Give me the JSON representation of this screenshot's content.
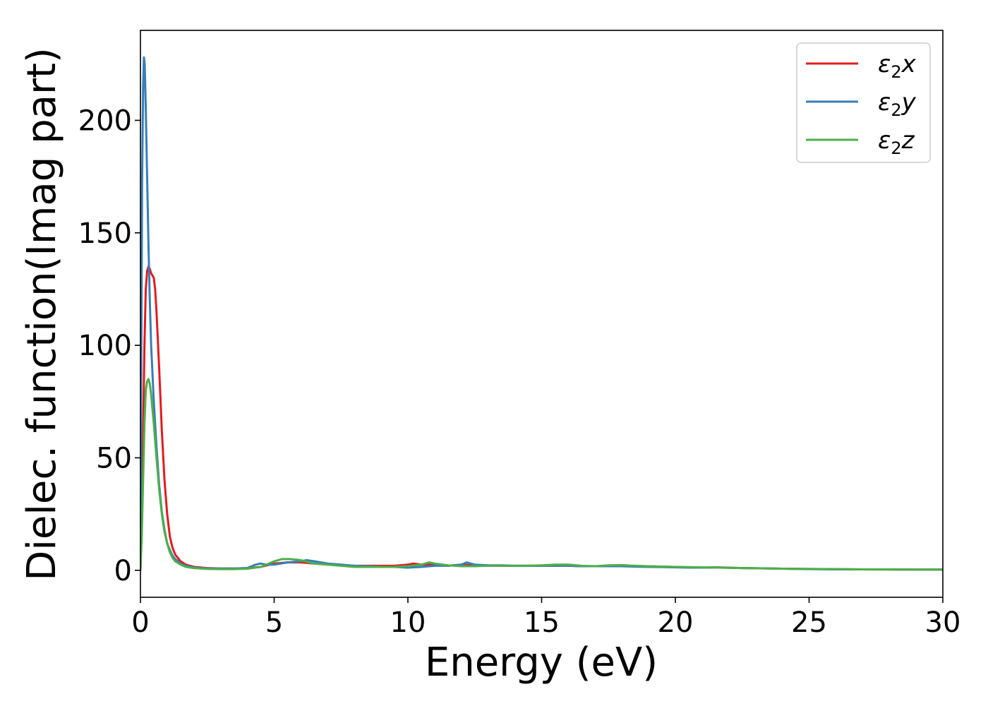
{
  "chart_data": {
    "type": "line",
    "title": "",
    "xlabel": "Energy (eV)",
    "ylabel": "Dielec. function(Imag part)",
    "xlim": [
      0,
      30
    ],
    "ylim": [
      -12,
      240
    ],
    "xticks": [
      0,
      5,
      10,
      15,
      20,
      25,
      30
    ],
    "xtick_labels": [
      "0",
      "5",
      "10",
      "15",
      "20",
      "25",
      "30"
    ],
    "yticks": [
      0,
      50,
      100,
      150,
      200
    ],
    "ytick_labels": [
      "0",
      "50",
      "100",
      "150",
      "200"
    ],
    "grid": false,
    "legend_position": "top-right",
    "series": [
      {
        "name": "ε2x",
        "legend_base": "ε",
        "legend_sub": "2",
        "legend_suffix": "x",
        "color": "#e41a1c",
        "x": [
          0,
          0.05,
          0.1,
          0.15,
          0.2,
          0.25,
          0.3,
          0.35,
          0.4,
          0.45,
          0.5,
          0.55,
          0.6,
          0.7,
          0.8,
          0.9,
          1.0,
          1.1,
          1.2,
          1.3,
          1.5,
          1.7,
          2.0,
          2.5,
          3.0,
          3.5,
          4.0,
          4.5,
          5.0,
          5.5,
          6.0,
          6.5,
          7.0,
          7.5,
          8.0,
          8.5,
          9.0,
          9.5,
          10.0,
          10.2,
          10.5,
          11.0,
          11.5,
          12.0,
          12.5,
          13.0,
          13.5,
          14.0,
          14.5,
          15.0,
          15.5,
          16.0,
          16.5,
          17.0,
          17.5,
          18.0,
          18.5,
          19.0,
          19.5,
          20.0,
          20.5,
          21.0,
          21.5,
          22.0,
          22.5,
          23.0,
          24.0,
          25.0,
          26.0,
          27.0,
          28.0,
          29.0,
          30.0
        ],
        "y": [
          0,
          20,
          60,
          100,
          125,
          133,
          135,
          134,
          132,
          131,
          130,
          125,
          115,
          90,
          62,
          40,
          25,
          15,
          10,
          7,
          4,
          2.5,
          1.5,
          1.0,
          0.8,
          0.8,
          1.0,
          1.5,
          3.0,
          3.5,
          3.5,
          3.0,
          2.5,
          2.2,
          2.0,
          2.0,
          2.0,
          2.0,
          2.5,
          3.0,
          2.5,
          2.5,
          2.0,
          2.5,
          2.2,
          2.0,
          2.0,
          2.0,
          2.0,
          2.0,
          2.0,
          2.0,
          1.8,
          1.8,
          1.8,
          1.8,
          1.8,
          1.8,
          1.6,
          1.5,
          1.3,
          1.2,
          1.3,
          1.2,
          1.0,
          0.9,
          0.7,
          0.6,
          0.5,
          0.4,
          0.4,
          0.3,
          0.3
        ]
      },
      {
        "name": "ε2y",
        "legend_base": "ε",
        "legend_sub": "2",
        "legend_suffix": "y",
        "color": "#377eb8",
        "x": [
          0,
          0.03,
          0.06,
          0.1,
          0.13,
          0.16,
          0.2,
          0.25,
          0.3,
          0.35,
          0.4,
          0.5,
          0.6,
          0.7,
          0.8,
          0.9,
          1.0,
          1.1,
          1.2,
          1.3,
          1.5,
          1.7,
          2.0,
          2.5,
          3.0,
          3.5,
          4.0,
          4.3,
          4.5,
          4.7,
          5.0,
          5.5,
          6.0,
          6.2,
          6.5,
          7.0,
          7.5,
          8.0,
          8.5,
          9.0,
          9.5,
          10.0,
          10.5,
          11.0,
          11.5,
          12.0,
          12.2,
          12.5,
          13.0,
          13.5,
          14.0,
          14.5,
          15.0,
          15.5,
          16.0,
          16.5,
          17.0,
          17.5,
          18.0,
          18.5,
          19.0,
          19.5,
          20.0,
          20.5,
          21.0,
          21.5,
          22.0,
          22.5,
          23.0,
          24.0,
          25.0,
          26.0,
          27.0,
          28.0,
          29.0,
          30.0
        ],
        "y": [
          0,
          90,
          170,
          215,
          228,
          225,
          205,
          175,
          145,
          120,
          100,
          75,
          55,
          38,
          26,
          18,
          12,
          9,
          6.5,
          5,
          3,
          2,
          1.2,
          0.8,
          0.8,
          0.8,
          1.0,
          2.5,
          3.0,
          2.5,
          2.5,
          3.5,
          4.0,
          4.5,
          4.0,
          3.0,
          2.5,
          2.0,
          1.8,
          1.5,
          1.5,
          1.2,
          1.5,
          2.0,
          2.0,
          2.5,
          3.5,
          2.5,
          2.2,
          2.2,
          2.0,
          2.0,
          2.0,
          2.0,
          2.0,
          1.8,
          1.8,
          1.8,
          1.8,
          1.6,
          1.5,
          1.4,
          1.3,
          1.2,
          1.2,
          1.3,
          1.1,
          1.0,
          0.9,
          0.7,
          0.5,
          0.4,
          0.4,
          0.3,
          0.3,
          0.3
        ]
      },
      {
        "name": "ε2z",
        "legend_base": "ε",
        "legend_sub": "2",
        "legend_suffix": "z",
        "color": "#4daf4a",
        "x": [
          0,
          0.05,
          0.1,
          0.15,
          0.2,
          0.25,
          0.3,
          0.35,
          0.4,
          0.5,
          0.6,
          0.7,
          0.8,
          0.9,
          1.0,
          1.1,
          1.2,
          1.3,
          1.5,
          1.7,
          2.0,
          2.5,
          3.0,
          3.5,
          4.0,
          4.5,
          5.0,
          5.3,
          5.6,
          6.0,
          6.3,
          6.5,
          7.0,
          7.5,
          8.0,
          8.5,
          9.0,
          9.5,
          10.0,
          10.5,
          10.8,
          11.0,
          11.5,
          12.0,
          12.5,
          13.0,
          13.5,
          14.0,
          14.5,
          15.0,
          15.5,
          16.0,
          16.5,
          17.0,
          17.5,
          18.0,
          18.5,
          19.0,
          19.5,
          20.0,
          20.5,
          21.0,
          21.5,
          22.0,
          22.5,
          23.0,
          24.0,
          25.0,
          26.0,
          27.0,
          28.0,
          29.0,
          30.0
        ],
        "y": [
          0,
          15,
          40,
          65,
          80,
          84,
          85,
          83,
          78,
          65,
          50,
          36,
          25,
          17,
          12,
          8,
          5.5,
          4,
          2.5,
          1.5,
          1.0,
          0.6,
          0.5,
          0.5,
          0.7,
          1.5,
          4.0,
          5.0,
          5.0,
          4.5,
          3.5,
          3.0,
          2.5,
          2.0,
          1.5,
          1.5,
          1.5,
          1.5,
          1.8,
          2.5,
          3.5,
          3.0,
          2.2,
          1.8,
          1.8,
          2.0,
          2.0,
          2.0,
          2.0,
          2.2,
          2.5,
          2.5,
          2.0,
          1.8,
          2.2,
          2.3,
          2.0,
          1.8,
          1.6,
          1.5,
          1.4,
          1.3,
          1.2,
          1.1,
          1.0,
          0.9,
          0.7,
          0.6,
          0.5,
          0.4,
          0.4,
          0.3,
          0.3
        ]
      }
    ]
  }
}
